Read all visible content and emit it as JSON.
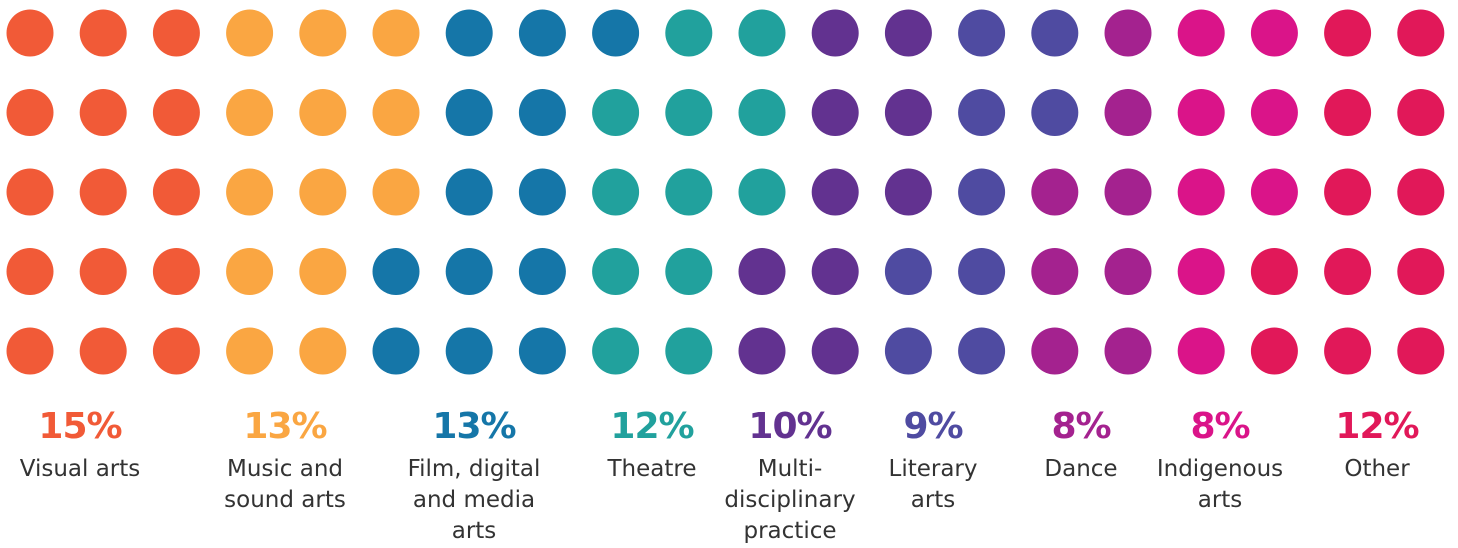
{
  "chart_data": {
    "type": "waffle",
    "unit_grid": {
      "columns": 20,
      "rows": 5
    },
    "categories": [
      {
        "label": "Visual arts",
        "value": 15,
        "display": "15%",
        "color": "#F15A37",
        "label_lines": [
          "Visual arts"
        ]
      },
      {
        "label": "Music and sound arts",
        "value": 13,
        "display": "13%",
        "color": "#FAA642",
        "label_lines": [
          "Music and",
          "sound arts"
        ]
      },
      {
        "label": "Film, digital and media arts",
        "value": 13,
        "display": "13%",
        "color": "#1576A8",
        "label_lines": [
          "Film, digital",
          "and media",
          "arts"
        ]
      },
      {
        "label": "Theatre",
        "value": 12,
        "display": "12%",
        "color": "#21A19D",
        "label_lines": [
          "Theatre"
        ]
      },
      {
        "label": "Multi-disciplinary practice",
        "value": 10,
        "display": "10%",
        "color": "#623290",
        "label_lines": [
          "Multi-",
          "disciplinary",
          "practice"
        ]
      },
      {
        "label": "Literary arts",
        "value": 9,
        "display": "9%",
        "color": "#4F4BA1",
        "label_lines": [
          "Literary",
          "arts"
        ]
      },
      {
        "label": "Dance",
        "value": 8,
        "display": "8%",
        "color": "#A4228F",
        "label_lines": [
          "Dance"
        ]
      },
      {
        "label": "Indigenous arts",
        "value": 8,
        "display": "8%",
        "color": "#DA1489",
        "label_lines": [
          "Indigenous",
          "arts"
        ]
      },
      {
        "label": "Other",
        "value": 12,
        "display": "12%",
        "color": "#E11859",
        "label_lines": [
          "Other"
        ]
      }
    ],
    "dots": [
      [
        0,
        0,
        0,
        1,
        1,
        1,
        2,
        2,
        2,
        3,
        3,
        4,
        4,
        5,
        5,
        6,
        7,
        7,
        8,
        8
      ],
      [
        0,
        0,
        0,
        1,
        1,
        1,
        2,
        2,
        3,
        3,
        3,
        4,
        4,
        5,
        5,
        6,
        7,
        7,
        8,
        8
      ],
      [
        0,
        0,
        0,
        1,
        1,
        1,
        2,
        2,
        3,
        3,
        3,
        4,
        4,
        5,
        6,
        6,
        7,
        7,
        8,
        8
      ],
      [
        0,
        0,
        0,
        1,
        1,
        2,
        2,
        2,
        3,
        3,
        4,
        4,
        5,
        5,
        6,
        6,
        7,
        8,
        8,
        8
      ],
      [
        0,
        0,
        0,
        1,
        1,
        2,
        2,
        2,
        3,
        3,
        4,
        4,
        5,
        5,
        6,
        6,
        7,
        8,
        8,
        8
      ]
    ]
  }
}
